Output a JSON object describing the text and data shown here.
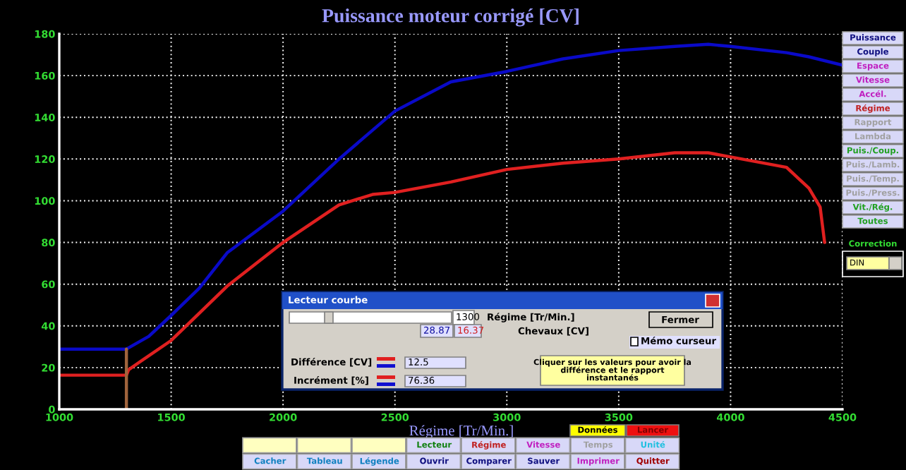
{
  "chart_data": {
    "type": "line",
    "title": "Puissance moteur corrigé [CV]",
    "xlabel": "Régime [Tr/Min.]",
    "xlim": [
      1000,
      4500
    ],
    "xticks": [
      1000,
      1500,
      2000,
      2500,
      3000,
      3500,
      4000,
      4500
    ],
    "ylim": [
      0,
      180
    ],
    "yticks": [
      0,
      20,
      40,
      60,
      80,
      100,
      120,
      140,
      160,
      180
    ],
    "grid": true,
    "series": [
      {
        "color": "#0a0ac8",
        "x": [
          1000,
          1300,
          1400,
          1500,
          1625,
          1750,
          2000,
          2250,
          2500,
          2750,
          3000,
          3250,
          3500,
          3750,
          3900,
          4000,
          4250,
          4350,
          4500
        ],
        "values": [
          28.87,
          28.87,
          35,
          45,
          58,
          75,
          95,
          120,
          143,
          157,
          162,
          168,
          172,
          174,
          175,
          174,
          171,
          169,
          165
        ]
      },
      {
        "color": "#e02020",
        "x": [
          1000,
          1300,
          1310,
          1350,
          1500,
          1750,
          2000,
          2250,
          2400,
          2500,
          2750,
          3000,
          3250,
          3500,
          3750,
          3900,
          4000,
          4250,
          4350,
          4400,
          4420
        ],
        "values": [
          16.37,
          16.37,
          19,
          22,
          33,
          59,
          80,
          98,
          103,
          104,
          109,
          115,
          118,
          120,
          123,
          123,
          121,
          116,
          106,
          97,
          80
        ]
      },
      {
        "color": "#a0643c",
        "x": [
          1300,
          1300
        ],
        "values": [
          0,
          28.87
        ]
      }
    ],
    "annotations": [
      "Lecteur courbe",
      "1300",
      "Régime [Tr/Min.]",
      "Fermer",
      "28.87",
      "16.37",
      "Chevaux [CV]",
      "Mémo curseur",
      "Différence [CV]",
      "12.5",
      "Incrément [%]",
      "76.36",
      "Cliquer sur les valeurs pour avoir la\ndifférence et le rapport\ninstantanés",
      "Puissance",
      "Couple",
      "Espace",
      "Vitesse",
      "Accél.",
      "Régime",
      "Rapport",
      "Lambda",
      "Puis./Coup.",
      "Puis./Lamb.",
      "Puis./Temp.",
      "Puis./Press.",
      "Vit./Rég.",
      "Toutes",
      "Correction",
      "DIN",
      "Données",
      "Lancer",
      "Lecteur",
      "Régime",
      "Vitesse",
      "Temps",
      "Unité",
      "Cacher",
      "Tableau",
      "Légende",
      "Ouvrir",
      "Comparer",
      "Sauver",
      "Imprimer",
      "Quitter"
    ]
  }
}
